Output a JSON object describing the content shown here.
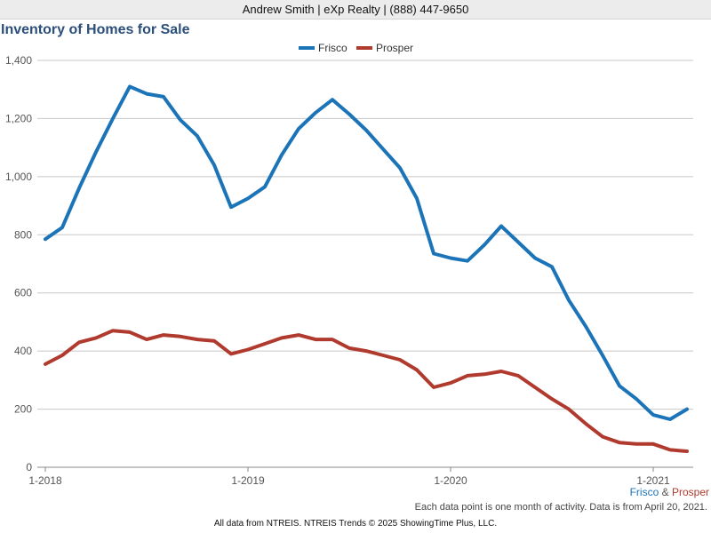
{
  "header": {
    "text": "Andrew Smith | eXp Realty | (888) 447-9650"
  },
  "title": "Inventory of Homes for Sale",
  "subtitle": {
    "frisco": "Frisco",
    "amp": "&",
    "prosper": "Prosper"
  },
  "note": "Each data point is one month of activity. Data is from April 20, 2021.",
  "footer": "All data from NTREIS. NTREIS Trends © 2025 ShowingTime Plus, LLC.",
  "chart_data": {
    "type": "line",
    "title": "Inventory of Homes for Sale",
    "xlabel": "",
    "ylabel": "",
    "ylim": [
      0,
      1400
    ],
    "yticks": [
      0,
      200,
      400,
      600,
      800,
      1000,
      1200,
      1400
    ],
    "ytick_labels": [
      "0",
      "200",
      "400",
      "600",
      "800",
      "1,000",
      "1,200",
      "1,400"
    ],
    "x_tick_labels": [
      "1-2018",
      "1-2019",
      "1-2020",
      "1-2021"
    ],
    "x": [
      "2018-01",
      "2018-02",
      "2018-03",
      "2018-04",
      "2018-05",
      "2018-06",
      "2018-07",
      "2018-08",
      "2018-09",
      "2018-10",
      "2018-11",
      "2018-12",
      "2019-01",
      "2019-02",
      "2019-03",
      "2019-04",
      "2019-05",
      "2019-06",
      "2019-07",
      "2019-08",
      "2019-09",
      "2019-10",
      "2019-11",
      "2019-12",
      "2020-01",
      "2020-02",
      "2020-03",
      "2020-04",
      "2020-05",
      "2020-06",
      "2020-07",
      "2020-08",
      "2020-09",
      "2020-10",
      "2020-11",
      "2020-12",
      "2021-01",
      "2021-02",
      "2021-03"
    ],
    "grid": true,
    "legend": "top-center",
    "series": [
      {
        "name": "Frisco",
        "color": "#1c74b8",
        "values": [
          785,
          825,
          960,
          1085,
          1200,
          1310,
          1285,
          1275,
          1195,
          1140,
          1040,
          895,
          925,
          965,
          1075,
          1165,
          1220,
          1265,
          1215,
          1160,
          1095,
          1030,
          925,
          735,
          720,
          710,
          765,
          830,
          775,
          720,
          690,
          575,
          485,
          385,
          280,
          235,
          180,
          165,
          200
        ]
      },
      {
        "name": "Prosper",
        "color": "#b03a2e",
        "values": [
          355,
          385,
          430,
          445,
          470,
          465,
          440,
          455,
          450,
          440,
          435,
          390,
          405,
          425,
          445,
          455,
          440,
          440,
          410,
          400,
          385,
          370,
          335,
          275,
          290,
          315,
          320,
          330,
          315,
          275,
          235,
          200,
          150,
          105,
          85,
          80,
          80,
          60,
          55
        ]
      }
    ]
  }
}
